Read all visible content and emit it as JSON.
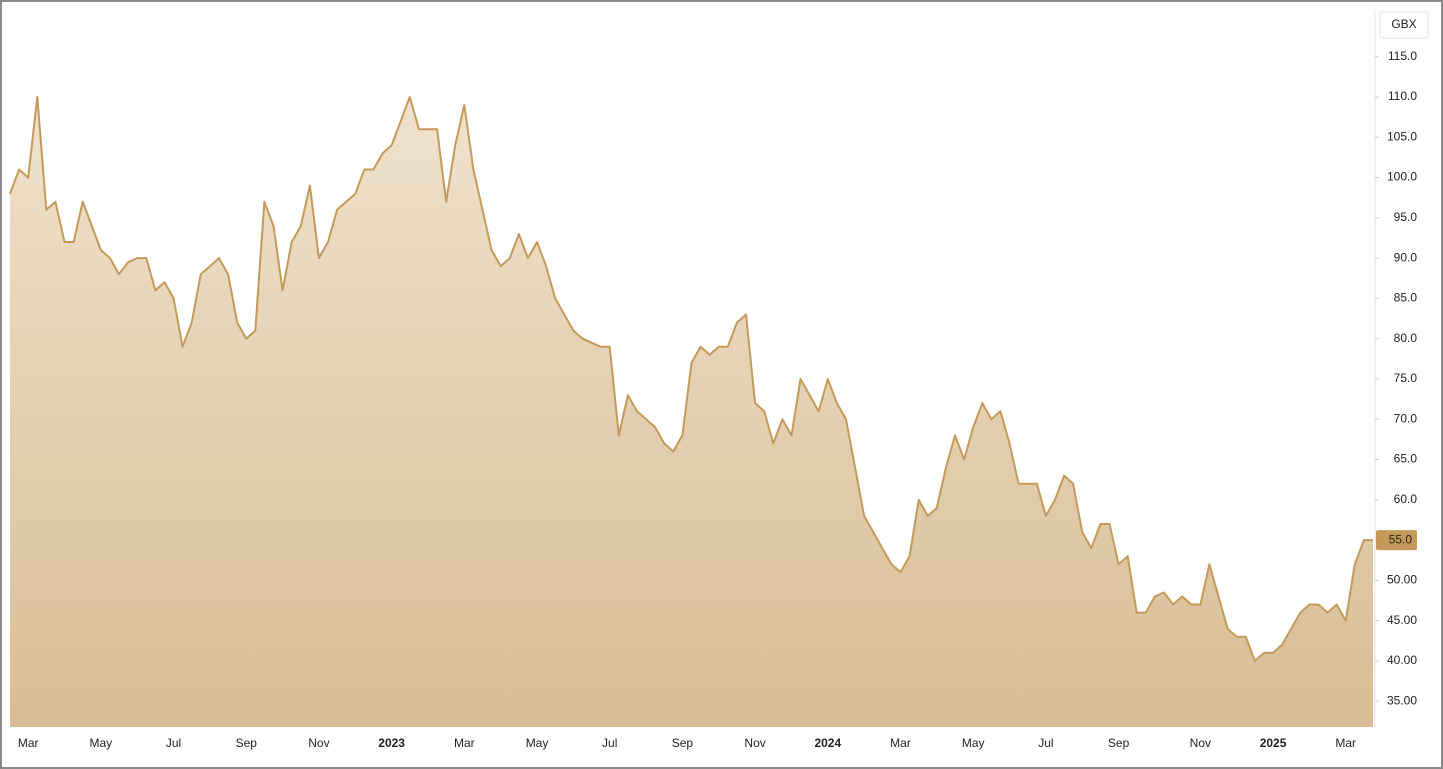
{
  "chart_data": {
    "type": "area",
    "y_unit": "GBX",
    "categories": [
      null,
      null,
      "Mar",
      null,
      null,
      null,
      null,
      null,
      null,
      null,
      "May",
      null,
      null,
      null,
      null,
      null,
      null,
      null,
      "Jul",
      null,
      null,
      null,
      null,
      null,
      null,
      null,
      "Sep",
      null,
      null,
      null,
      null,
      null,
      null,
      null,
      "Nov",
      null,
      null,
      null,
      null,
      null,
      null,
      null,
      "2023",
      null,
      null,
      null,
      null,
      null,
      null,
      null,
      "Mar",
      null,
      null,
      null,
      null,
      null,
      null,
      null,
      "May",
      null,
      null,
      null,
      null,
      null,
      null,
      null,
      "Jul",
      null,
      null,
      null,
      null,
      null,
      null,
      null,
      "Sep",
      null,
      null,
      null,
      null,
      null,
      null,
      null,
      "Nov",
      null,
      null,
      null,
      null,
      null,
      null,
      null,
      "2024",
      null,
      null,
      null,
      null,
      null,
      null,
      null,
      "Mar",
      null,
      null,
      null,
      null,
      null,
      null,
      null,
      "May",
      null,
      null,
      null,
      null,
      null,
      null,
      null,
      "Jul",
      null,
      null,
      null,
      null,
      null,
      null,
      null,
      "Sep",
      null,
      null,
      null,
      null,
      null,
      null,
      null,
      null,
      "Nov",
      null,
      null,
      null,
      null,
      null,
      null,
      null,
      "2025",
      null,
      null,
      null,
      null,
      null,
      null,
      null,
      "Mar",
      null,
      null,
      null
    ],
    "values": [
      98,
      101,
      100,
      110,
      96,
      97,
      92,
      92,
      97,
      94,
      91,
      90,
      88,
      89.5,
      90,
      90,
      86,
      87,
      85,
      79,
      82,
      88,
      89,
      90,
      88,
      82,
      80,
      81,
      97,
      94,
      86,
      92,
      94,
      99,
      90,
      92,
      96,
      97,
      98,
      101,
      101,
      103,
      104,
      107,
      110,
      106,
      106,
      106,
      97,
      104,
      109,
      101,
      96,
      91,
      89,
      90,
      93,
      90,
      92,
      89,
      85,
      83,
      81,
      80,
      79.5,
      79,
      79,
      68,
      73,
      71,
      70,
      69,
      67,
      66,
      68,
      77,
      79,
      78,
      79,
      79,
      82,
      83,
      72,
      71,
      67,
      70,
      68,
      75,
      73,
      71,
      75,
      72,
      70,
      64,
      58,
      56,
      54,
      52,
      51,
      53,
      60,
      58,
      59,
      64,
      68,
      65,
      69,
      72,
      70,
      71,
      67,
      62,
      62,
      62,
      58,
      60,
      63,
      62,
      56,
      54,
      57,
      57,
      52,
      53,
      46,
      46,
      48,
      48.5,
      47,
      48,
      47,
      47,
      52,
      48,
      44,
      43,
      43,
      40,
      41,
      41,
      42,
      44,
      46,
      47,
      47,
      46,
      47,
      45,
      52,
      55,
      55
    ],
    "color": "#c49a5a",
    "last_price": {
      "value": 55,
      "label": "55.0"
    },
    "ylim": [
      31.8,
      120.8
    ],
    "yticks": [
      {
        "value": 35,
        "label": "35.00"
      },
      {
        "value": 40,
        "label": "40.00"
      },
      {
        "value": 45,
        "label": "45.00"
      },
      {
        "value": 50,
        "label": "50.00"
      },
      {
        "value": 55,
        "label": "55.0"
      },
      {
        "value": 60,
        "label": "60.0"
      },
      {
        "value": 65,
        "label": "65.0"
      },
      {
        "value": 70,
        "label": "70.0"
      },
      {
        "value": 75,
        "label": "75.0"
      },
      {
        "value": 80,
        "label": "80.0"
      },
      {
        "value": 85,
        "label": "85.0"
      },
      {
        "value": 90,
        "label": "90.0"
      },
      {
        "value": 95,
        "label": "95.0"
      },
      {
        "value": 100,
        "label": "100.0"
      },
      {
        "value": 105,
        "label": "105.0"
      },
      {
        "value": 110,
        "label": "110.0"
      },
      {
        "value": 115,
        "label": "115.0"
      }
    ],
    "grid": false
  }
}
